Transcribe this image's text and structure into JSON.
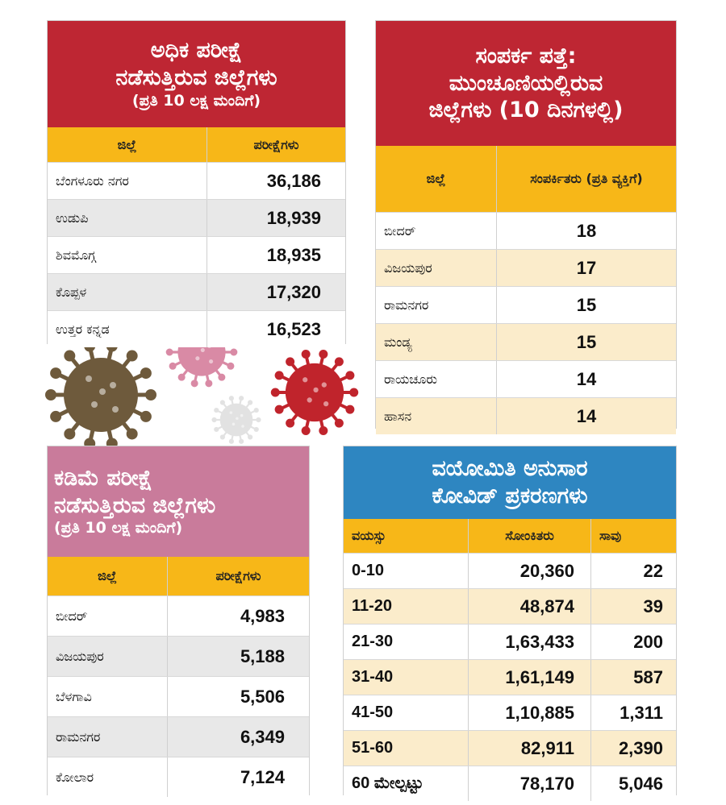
{
  "colors": {
    "red": "#be2633",
    "yellow": "#f7b718",
    "pink": "#c97b9b",
    "blue": "#2e86c1",
    "grey_row": "#e8e8e8",
    "cream_row": "#fbeccb"
  },
  "high_testing": {
    "title_line1": "ಅಧಿಕ ಪರೀಕ್ಷೆ",
    "title_line2": "ನಡೆಸುತ್ತಿರುವ ಜಿಲ್ಲೆಗಳು",
    "title_line3": "(ಪ್ರತಿ 10 ಲಕ್ಷ ಮಂದಿಗೆ)",
    "headers": [
      "ಜಿಲ್ಲೆ",
      "ಪರೀಕ್ಷೆಗಳು"
    ],
    "rows": [
      {
        "district": "ಬೆಂಗಳೂರು ನಗರ",
        "value": "36,186"
      },
      {
        "district": "ಉಡುಪಿ",
        "value": "18,939"
      },
      {
        "district": "ಶಿವಮೊಗ್ಗ",
        "value": "18,935"
      },
      {
        "district": "ಕೊಪ್ಪಳ",
        "value": "17,320"
      },
      {
        "district": "ಉತ್ತರ ಕನ್ನಡ",
        "value": "16,523"
      }
    ]
  },
  "contact_tracing": {
    "title_line1": "ಸಂಪರ್ಕ ಪತ್ತೆ:",
    "title_line2": "ಮುಂಚೂಣಿಯಲ್ಲಿರುವ",
    "title_line3": "ಜಿಲ್ಲೆಗಳು (10 ದಿನಗಳಲ್ಲಿ)",
    "headers": [
      "ಜಿಲ್ಲೆ",
      "ಸಂಪರ್ಕಿತರು (ಪ್ರತಿ ವ್ಯಕ್ತಿಗೆ)"
    ],
    "rows": [
      {
        "district": "ಬೀದರ್",
        "value": "18"
      },
      {
        "district": "ವಿಜಯಪುರ",
        "value": "17"
      },
      {
        "district": "ರಾಮನಗರ",
        "value": "15"
      },
      {
        "district": "ಮಂಡ್ಯ",
        "value": "15"
      },
      {
        "district": "ರಾಯಚೂರು",
        "value": "14"
      },
      {
        "district": "ಹಾಸನ",
        "value": "14"
      }
    ]
  },
  "low_testing": {
    "title_line1": "ಕಡಿಮೆ ಪರೀಕ್ಷೆ",
    "title_line2": "ನಡೆಸುತ್ತಿರುವ ಜಿಲ್ಲೆಗಳು",
    "title_line3": "(ಪ್ರತಿ 10 ಲಕ್ಷ ಮಂದಿಗೆ)",
    "headers": [
      "ಜಿಲ್ಲೆ",
      "ಪರೀಕ್ಷೆಗಳು"
    ],
    "rows": [
      {
        "district": "ಬೀದರ್",
        "value": "4,983"
      },
      {
        "district": "ವಿಜಯಪುರ",
        "value": "5,188"
      },
      {
        "district": "ಬೆಳಗಾವಿ",
        "value": "5,506"
      },
      {
        "district": "ರಾಮನಗರ",
        "value": "6,349"
      },
      {
        "district": "ಕೋಲಾರ",
        "value": "7,124"
      }
    ]
  },
  "age_cases": {
    "title_line1": "ವಯೋಮಿತಿ ಅನುಸಾರ",
    "title_line2": "ಕೋವಿಡ್ ಪ್ರಕರಣಗಳು",
    "headers": [
      "ವಯಸ್ಸು",
      "ಸೋಂಕಿತರು",
      "ಸಾವು"
    ],
    "rows": [
      {
        "age": "0-10",
        "infected": "20,360",
        "deaths": "22"
      },
      {
        "age": "11-20",
        "infected": "48,874",
        "deaths": "39"
      },
      {
        "age": "21-30",
        "infected": "1,63,433",
        "deaths": "200"
      },
      {
        "age": "31-40",
        "infected": "1,61,149",
        "deaths": "587"
      },
      {
        "age": "41-50",
        "infected": "1,10,885",
        "deaths": "1,311"
      },
      {
        "age": "51-60",
        "infected": "82,911",
        "deaths": "2,390"
      },
      {
        "age": "60 ಮೇಲ್ಪಟ್ಟು",
        "infected": "78,170",
        "deaths": "5,046"
      }
    ]
  }
}
